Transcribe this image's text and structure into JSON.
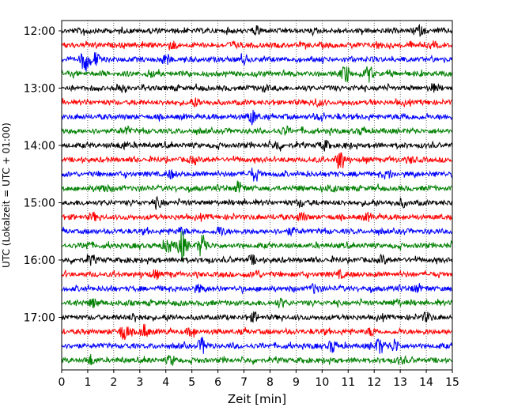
{
  "chart_data": {
    "type": "line",
    "title": "",
    "xlabel": "Zeit  [min]",
    "ylabel": "UTC (Lokalzeit = UTC + 01:00)",
    "xlim": [
      0,
      15
    ],
    "x_ticks": [
      "0",
      "1",
      "2",
      "3",
      "4",
      "5",
      "6",
      "7",
      "8",
      "9",
      "10",
      "11",
      "12",
      "13",
      "14",
      "15"
    ],
    "y_ticks": [
      "12:00",
      "13:00",
      "14:00",
      "15:00",
      "16:00",
      "17:00"
    ],
    "rows_per_hour": 4,
    "grid": "vertical dotted",
    "series_colors": [
      "#000000",
      "#ff0000",
      "#0000ff",
      "#008000"
    ],
    "series": [
      {
        "start": "12:00",
        "events": [
          [
            0.9,
            0.8
          ],
          [
            7.5,
            0.7
          ],
          [
            13.7,
            0.9
          ]
        ]
      },
      {
        "start": "12:15",
        "events": [
          [
            4.3,
            0.6
          ],
          [
            6.6,
            0.5
          ],
          [
            12.1,
            0.6
          ]
        ]
      },
      {
        "start": "12:30",
        "events": [
          [
            0.9,
            2.6
          ],
          [
            1.3,
            1.5
          ],
          [
            4.0,
            1.0
          ],
          [
            7.0,
            0.8
          ]
        ]
      },
      {
        "start": "12:45",
        "events": [
          [
            10.9,
            1.9
          ],
          [
            11.8,
            1.5
          ],
          [
            3.4,
            0.6
          ]
        ]
      },
      {
        "start": "13:00",
        "events": [
          [
            2.2,
            0.6
          ],
          [
            7.8,
            0.6
          ],
          [
            14.2,
            0.7
          ]
        ]
      },
      {
        "start": "13:15",
        "events": [
          [
            5.2,
            0.7
          ],
          [
            9.8,
            0.6
          ]
        ]
      },
      {
        "start": "13:30",
        "events": [
          [
            7.3,
            1.6
          ],
          [
            10.0,
            0.8
          ],
          [
            13.2,
            0.7
          ]
        ]
      },
      {
        "start": "13:45",
        "events": [
          [
            2.5,
            0.7
          ],
          [
            8.6,
            0.8
          ],
          [
            11.6,
            0.6
          ]
        ]
      },
      {
        "start": "14:00",
        "events": [
          [
            2.4,
            0.7
          ],
          [
            8.3,
            0.9
          ],
          [
            10.1,
            0.8
          ]
        ]
      },
      {
        "start": "14:15",
        "events": [
          [
            10.7,
            2.0
          ],
          [
            5.1,
            0.8
          ],
          [
            13.4,
            0.6
          ]
        ]
      },
      {
        "start": "14:30",
        "events": [
          [
            7.4,
            1.3
          ],
          [
            4.2,
            0.7
          ],
          [
            12.6,
            0.6
          ]
        ]
      },
      {
        "start": "14:45",
        "events": [
          [
            1.6,
            0.9
          ],
          [
            6.8,
            1.1
          ],
          [
            10.4,
            0.7
          ]
        ]
      },
      {
        "start": "15:00",
        "events": [
          [
            3.7,
            0.8
          ],
          [
            9.2,
            0.8
          ],
          [
            13.1,
            0.7
          ]
        ]
      },
      {
        "start": "15:15",
        "events": [
          [
            1.2,
            0.7
          ],
          [
            9.2,
            0.9
          ],
          [
            11.8,
            0.7
          ]
        ]
      },
      {
        "start": "15:30",
        "events": [
          [
            4.6,
            0.8
          ],
          [
            6.1,
            0.8
          ],
          [
            8.8,
            0.7
          ]
        ]
      },
      {
        "start": "15:45",
        "events": [
          [
            4.6,
            3.4
          ],
          [
            5.4,
            2.8
          ],
          [
            4.1,
            1.4
          ],
          [
            1.0,
            0.7
          ]
        ]
      },
      {
        "start": "16:00",
        "events": [
          [
            1.1,
            1.0
          ],
          [
            7.3,
            0.8
          ],
          [
            12.3,
            0.8
          ]
        ]
      },
      {
        "start": "16:15",
        "events": [
          [
            3.6,
            0.8
          ],
          [
            7.5,
            0.8
          ],
          [
            10.7,
            0.7
          ]
        ]
      },
      {
        "start": "16:30",
        "events": [
          [
            5.3,
            0.8
          ],
          [
            9.7,
            0.8
          ],
          [
            13.6,
            0.7
          ]
        ]
      },
      {
        "start": "16:45",
        "events": [
          [
            1.2,
            0.8
          ],
          [
            8.4,
            0.8
          ],
          [
            12.9,
            0.7
          ]
        ]
      },
      {
        "start": "17:00",
        "events": [
          [
            2.8,
            0.9
          ],
          [
            7.4,
            0.8
          ],
          [
            14.0,
            0.9
          ]
        ]
      },
      {
        "start": "17:15",
        "events": [
          [
            2.4,
            2.0
          ],
          [
            3.2,
            1.4
          ],
          [
            5.0,
            0.8
          ],
          [
            11.9,
            0.7
          ]
        ]
      },
      {
        "start": "17:30",
        "events": [
          [
            5.4,
            1.6
          ],
          [
            10.4,
            1.2
          ],
          [
            12.2,
            1.8
          ],
          [
            12.8,
            1.3
          ]
        ]
      },
      {
        "start": "17:45",
        "events": [
          [
            1.1,
            0.9
          ],
          [
            4.2,
            0.9
          ],
          [
            13.0,
            0.7
          ]
        ]
      }
    ]
  }
}
